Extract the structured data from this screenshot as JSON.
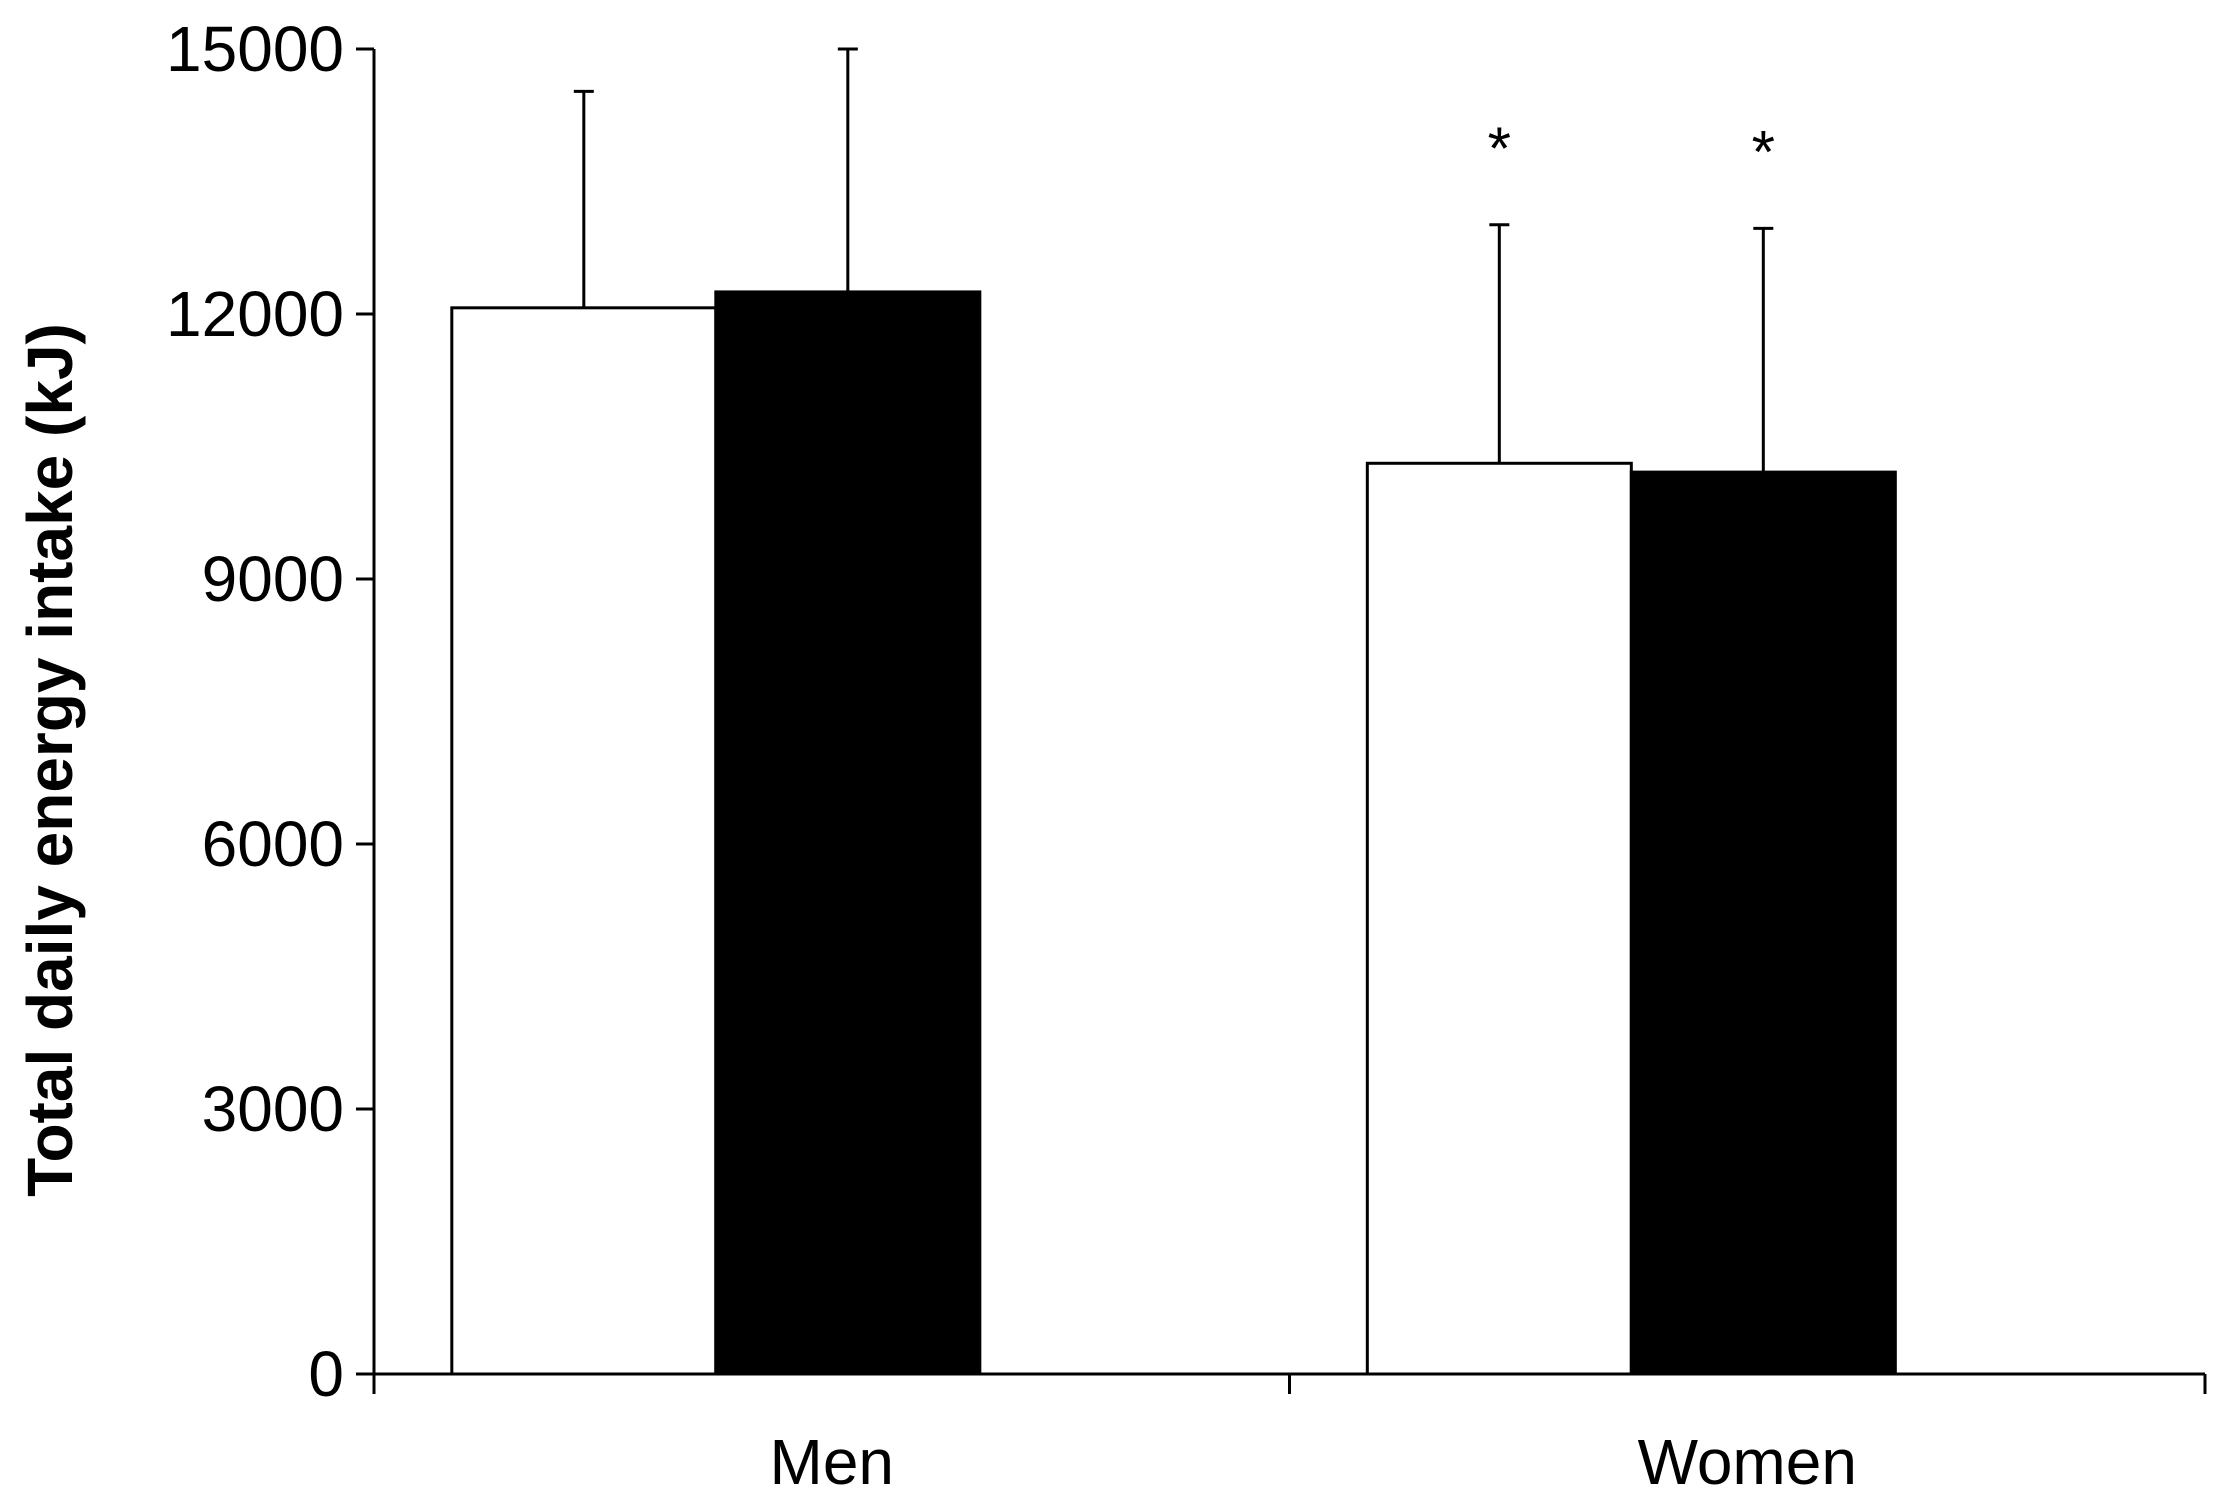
{
  "chart_data": {
    "type": "bar",
    "categories": [
      "Men",
      "Women"
    ],
    "series": [
      {
        "fill": "#ffffff",
        "values": [
          12070,
          10310
        ],
        "error_plus": [
          2450,
          2700
        ]
      },
      {
        "fill": "#000000",
        "values": [
          12250,
          10210
        ],
        "error_plus": [
          2750,
          2760
        ]
      }
    ],
    "annotations": [
      {
        "text": "*",
        "category": "Women",
        "series_index": 0
      },
      {
        "text": "*",
        "category": "Women",
        "series_index": 1
      }
    ],
    "xlabel": "",
    "ylabel": "Total daily energy intake (kJ)",
    "ylim": [
      0,
      15000
    ],
    "yticks": [
      0,
      3000,
      6000,
      9000,
      12000,
      15000
    ],
    "grid": false,
    "legend": "none"
  }
}
